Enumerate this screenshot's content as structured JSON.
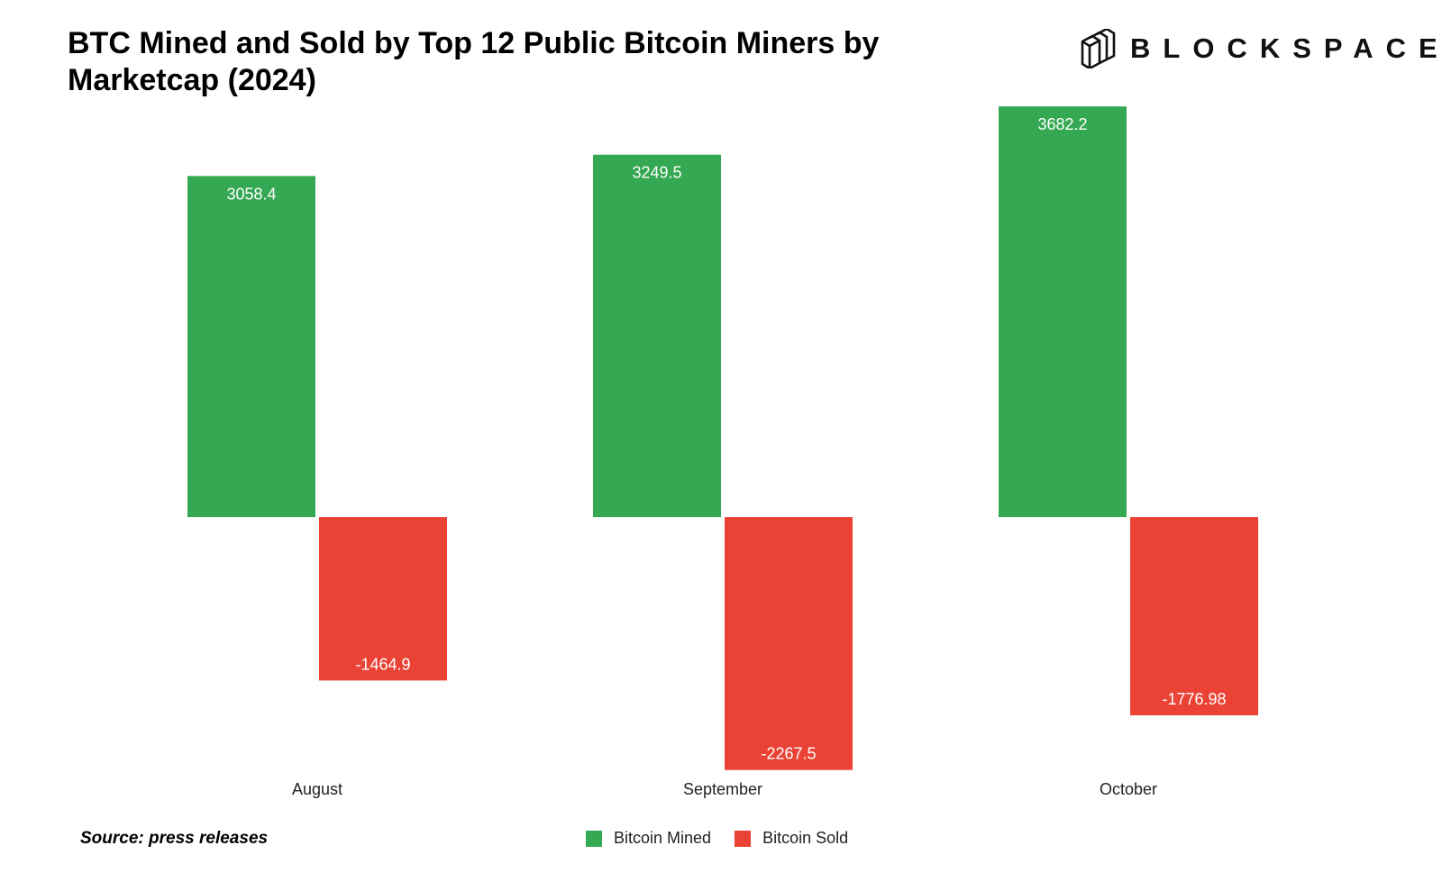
{
  "chart_data": {
    "type": "bar",
    "title": "BTC Mined and Sold by Top 12 Public Bitcoin Miners by Marketcap (2024)",
    "categories": [
      "August",
      "September",
      "October"
    ],
    "series": [
      {
        "name": "Bitcoin Mined",
        "values": [
          3058.4,
          3249.5,
          3682.2
        ],
        "labels": [
          "3058.4",
          "3249.5",
          "3682.2"
        ],
        "color": "#34a853"
      },
      {
        "name": "Bitcoin Sold",
        "values": [
          -1464.9,
          -2267.5,
          -1776.98
        ],
        "labels": [
          "-1464.9",
          "-2267.5",
          "-1776.98"
        ],
        "color": "#ea4335"
      }
    ],
    "ylim": [
      -2300,
      3700
    ],
    "grid": false,
    "legend_position": "bottom-center"
  },
  "source_note": "Source: press releases",
  "brand": {
    "name": "BLOCKSPACE",
    "icon": "stacked-cubes-logo-icon"
  }
}
